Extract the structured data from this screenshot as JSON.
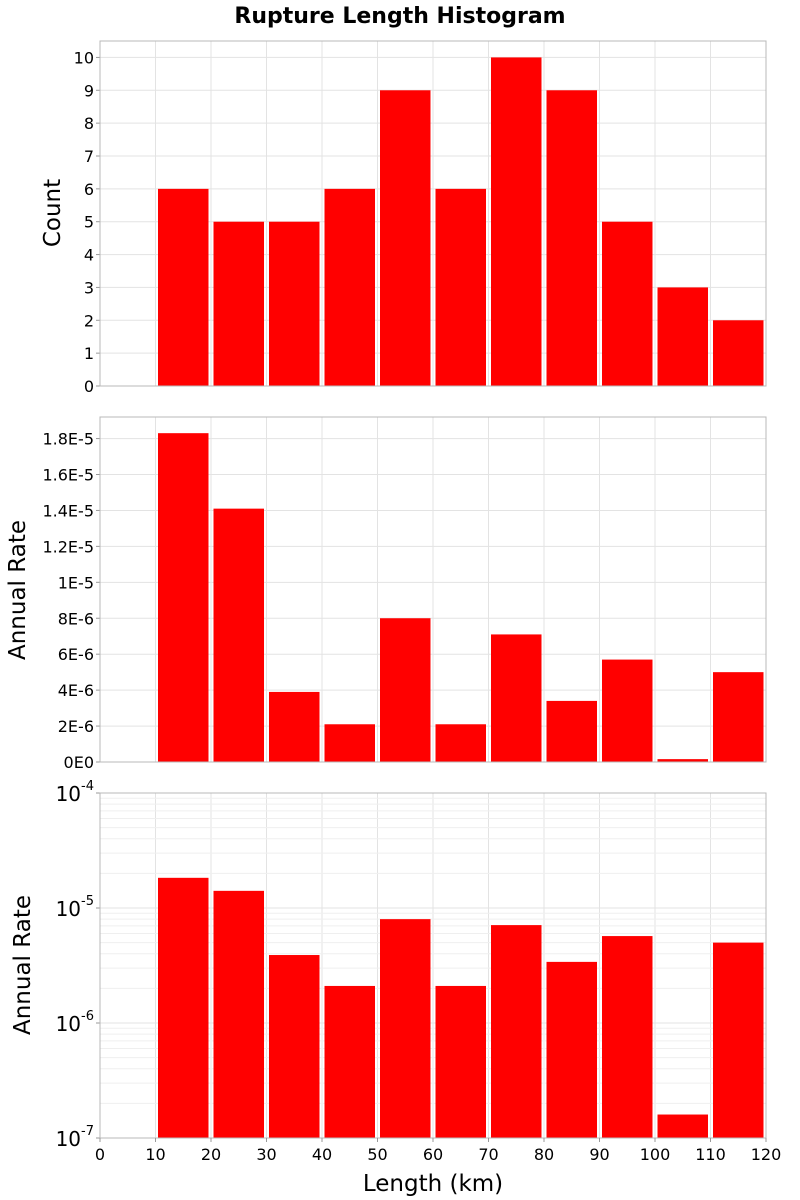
{
  "figure_title": "Rupture Length Histogram",
  "xlabel": "Length (km)",
  "x_ticks": [
    "0",
    "10",
    "20",
    "30",
    "40",
    "50",
    "60",
    "70",
    "80",
    "90",
    "100",
    "110",
    "120"
  ],
  "colors": {
    "bar": "#ff0000"
  },
  "chart_data": [
    {
      "type": "bar",
      "title": "Rupture Length Histogram",
      "xlabel": "",
      "ylabel": "Count",
      "x_range": [
        0,
        120
      ],
      "ylim": [
        0,
        10.5
      ],
      "y_ticks": [
        "0",
        "1",
        "2",
        "3",
        "4",
        "5",
        "6",
        "7",
        "8",
        "9",
        "10"
      ],
      "grid": true,
      "bin_width": 10,
      "bins": [
        15,
        25,
        35,
        45,
        55,
        65,
        75,
        85,
        95,
        105,
        115
      ],
      "values": [
        6,
        5,
        5,
        6,
        9,
        6,
        10,
        9,
        5,
        3,
        2
      ]
    },
    {
      "type": "bar",
      "xlabel": "",
      "ylabel": "Annual Rate",
      "x_range": [
        0,
        120
      ],
      "ylim": [
        0,
        1.92e-05
      ],
      "y_ticks": [
        "0E0",
        "2E-6",
        "4E-6",
        "6E-6",
        "8E-6",
        "1E-5",
        "1.2E-5",
        "1.4E-5",
        "1.6E-5",
        "1.8E-5"
      ],
      "grid": true,
      "bin_width": 10,
      "bins": [
        15,
        25,
        35,
        45,
        55,
        65,
        75,
        85,
        95,
        105,
        115
      ],
      "values": [
        1.83e-05,
        1.41e-05,
        3.9e-06,
        2.1e-06,
        8e-06,
        2.1e-06,
        7.1e-06,
        3.4e-06,
        5.7e-06,
        1.6e-07,
        5e-06
      ]
    },
    {
      "type": "bar",
      "xlabel": "Length (km)",
      "ylabel": "Annual Rate",
      "x_range": [
        0,
        120
      ],
      "ylim": [
        1e-07,
        0.0001
      ],
      "y_scale": "log",
      "y_ticks": [
        {
          "base": "10",
          "exp": "-7"
        },
        {
          "base": "10",
          "exp": "-6"
        },
        {
          "base": "10",
          "exp": "-5"
        },
        {
          "base": "10",
          "exp": "-4"
        }
      ],
      "grid": true,
      "bin_width": 10,
      "bins": [
        15,
        25,
        35,
        45,
        55,
        65,
        75,
        85,
        95,
        105,
        115
      ],
      "values": [
        1.83e-05,
        1.41e-05,
        3.9e-06,
        2.1e-06,
        8e-06,
        2.1e-06,
        7.1e-06,
        3.4e-06,
        5.7e-06,
        1.6e-07,
        5e-06
      ]
    }
  ]
}
